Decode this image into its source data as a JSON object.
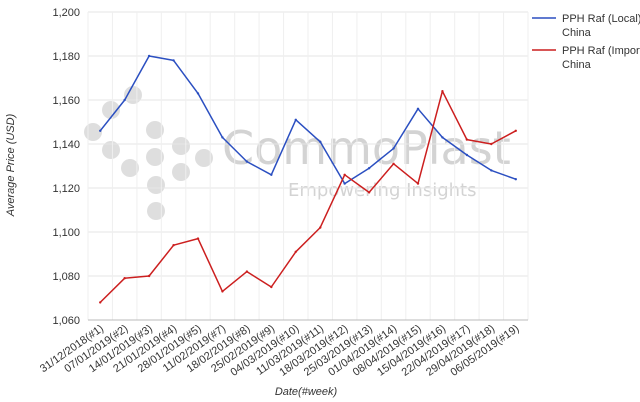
{
  "chart_data": {
    "type": "line",
    "title": "",
    "xlabel": "Date(#week)",
    "ylabel": "Average Price (USD)",
    "ylim": [
      1060,
      1200
    ],
    "yticks": [
      "1,060",
      "1,080",
      "1,100",
      "1,120",
      "1,140",
      "1,160",
      "1,180",
      "1,200"
    ],
    "ytick_values": [
      1060,
      1080,
      1100,
      1120,
      1140,
      1160,
      1180,
      1200
    ],
    "grid": true,
    "legend_position": "right",
    "categories": [
      "31/12/2018(#1)",
      "07/01/2019(#2)",
      "14/01/2019(#3)",
      "21/01/2019(#4)",
      "28/01/2019(#5)",
      "11/02/2019(#7)",
      "18/02/2019(#8)",
      "25/02/2019(#9)",
      "04/03/2019(#10)",
      "11/03/2019(#11)",
      "18/03/2019(#12)",
      "25/03/2019(#13)",
      "01/04/2019(#14)",
      "08/04/2019(#15)",
      "15/04/2019(#16)",
      "22/04/2019(#17)",
      "29/04/2019(#18)",
      "06/05/2019(#19)"
    ],
    "series": [
      {
        "name": "PPH Raf (Local) - China",
        "color": "#2b4fc1",
        "values": [
          1146,
          1160,
          1180,
          1178,
          1163,
          1143,
          1132,
          1126,
          1151,
          1141,
          1122,
          1129,
          1138,
          1156,
          1143,
          1135,
          1128,
          1124
        ]
      },
      {
        "name": "PPH Raf (Import) - China",
        "color": "#cc1f1f",
        "values": [
          1068,
          1079,
          1080,
          1094,
          1097,
          1073,
          1082,
          1075,
          1091,
          1102,
          1126,
          1118,
          1131,
          1122,
          1164,
          1142,
          1140,
          1146
        ]
      }
    ]
  },
  "watermark": {
    "brand": "CommoPlast",
    "tagline": "Empowering Insights"
  }
}
